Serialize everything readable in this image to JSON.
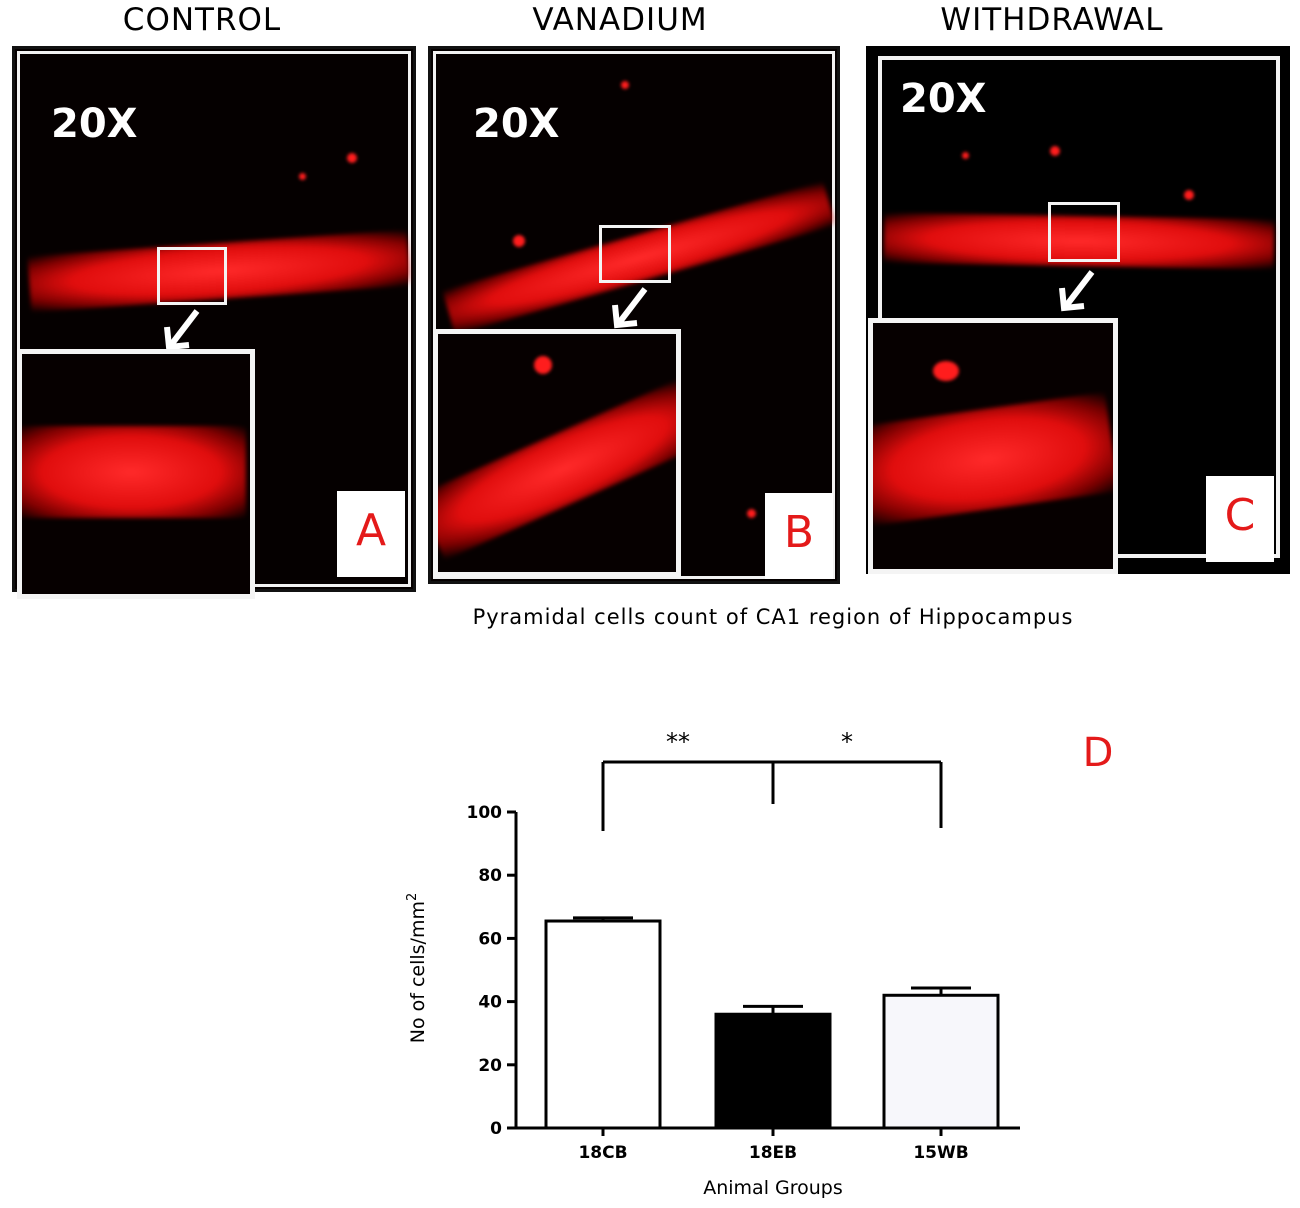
{
  "figure": {
    "columns": [
      {
        "title": "CONTROL",
        "panel_letter": "A",
        "magnification": "20X"
      },
      {
        "title": "VANADIUM",
        "panel_letter": "B",
        "magnification": "20X"
      },
      {
        "title": "WITHDRAWAL",
        "panel_letter": "C",
        "magnification": "20X"
      }
    ],
    "caption": "Pyramidal cells count of CA1 region of Hippocampus",
    "chart_panel_letter": "D",
    "colors": {
      "stain": "#ff1a1a",
      "panel_letter": "#e41a1a",
      "background": "#050000"
    }
  },
  "chart_data": {
    "type": "bar",
    "categories": [
      "18CB",
      "18EB",
      "15WB"
    ],
    "values": [
      65.5,
      36,
      42
    ],
    "errors": [
      1,
      2.5,
      2.3
    ],
    "bar_fills": [
      "#ffffff",
      "#000000",
      "#f7f7fb"
    ],
    "xlabel": "Animal Groups",
    "ylabel": "No of cells/mm",
    "ylabel_superscript": "2",
    "ylim": [
      0,
      100
    ],
    "yticks": [
      0,
      20,
      40,
      60,
      80,
      100
    ],
    "significance": [
      {
        "groups": [
          "18CB",
          "18EB"
        ],
        "label": "**"
      },
      {
        "groups": [
          "18EB",
          "15WB"
        ],
        "label": "*"
      }
    ]
  }
}
